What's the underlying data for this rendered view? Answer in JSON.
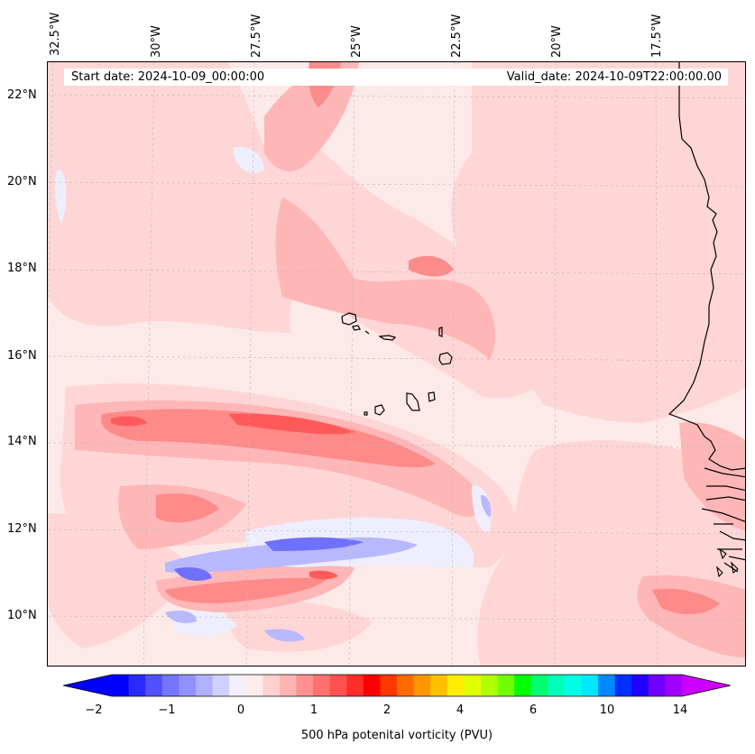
{
  "header": {
    "start_date": "Start date: 2024-10-09_00:00:00",
    "valid_date": "Valid_date: 2024-10-09T22:00:00.00"
  },
  "longitude_labels": [
    "32.5°W",
    "30°W",
    "27.5°W",
    "25°W",
    "22.5°W",
    "20°W",
    "17.5°W"
  ],
  "latitude_labels": [
    "22°N",
    "20°N",
    "18°N",
    "16°N",
    "14°N",
    "12°N",
    "10°N"
  ],
  "colorbar": {
    "label": "500 hPa potenital vorticity (PVU)",
    "tick_labels": [
      "−2",
      "−1",
      "0",
      "1",
      "2",
      "4",
      "6",
      "10",
      "14"
    ],
    "colors": [
      "#0000ff",
      "#2a2aff",
      "#5050ff",
      "#7474ff",
      "#9090ff",
      "#b0b0ff",
      "#d0d0ff",
      "#f0f0ff",
      "#ffecec",
      "#ffd0d0",
      "#ffb4b4",
      "#ff9090",
      "#ff7070",
      "#ff5050",
      "#ff2c2c",
      "#ff0000",
      "#ff3800",
      "#ff6a00",
      "#ff9600",
      "#ffc000",
      "#ffee00",
      "#e0ff00",
      "#b0ff00",
      "#70ff00",
      "#00ff00",
      "#00ff70",
      "#00ffb8",
      "#00ffe6",
      "#00e8ff",
      "#0088ff",
      "#0030ff",
      "#2000ff",
      "#7000ff",
      "#a000ff"
    ],
    "arrow_left_color": "#0000ff",
    "arrow_right_color": "#cc00ff"
  },
  "field_colors": {
    "background": "#fee9e9",
    "light_pink": "#ffd6d6",
    "pink": "#ffb6b6",
    "red": "#ff8a8a",
    "deep_red": "#ff5a5a",
    "light_blue": "#eeeeff",
    "blue": "#b8b8ff",
    "deep_blue": "#7070ff"
  }
}
